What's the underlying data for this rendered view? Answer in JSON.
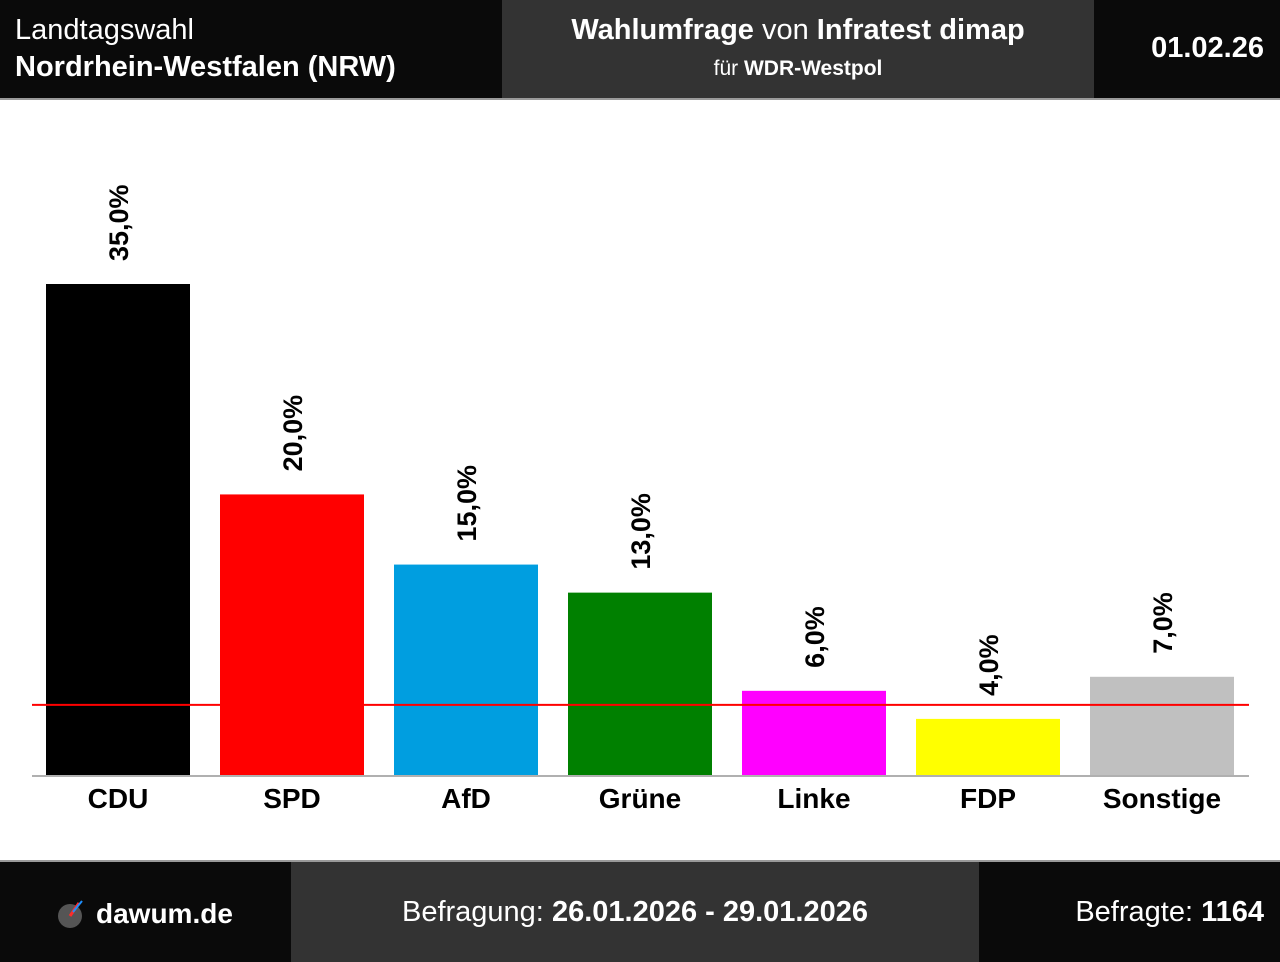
{
  "header": {
    "election_line1": "Landtagswahl",
    "election_line2": "Nordrhein-Westfalen (NRW)",
    "title_part1": "Wahlumfrage",
    "title_part2": " von ",
    "title_part3": "Infratest dimap",
    "client_prefix": "für ",
    "client_name": "WDR-Westpol",
    "date": "01.02.26"
  },
  "footer": {
    "brand": "dawum.de",
    "survey_prefix": "Befragung: ",
    "survey_period": "26.01.2026 - 29.01.2026",
    "respondents_prefix": "Befragte: ",
    "respondents_count": "1164"
  },
  "chart_data": {
    "type": "bar",
    "categories": [
      "CDU",
      "SPD",
      "AfD",
      "Grüne",
      "Linke",
      "FDP",
      "Sonstige"
    ],
    "values": [
      35.0,
      20.0,
      15.0,
      13.0,
      6.0,
      4.0,
      7.0
    ],
    "value_labels": [
      "35,0%",
      "20,0%",
      "15,0%",
      "13,0%",
      "6,0%",
      "4,0%",
      "7,0%"
    ],
    "colors": [
      "#000000",
      "#ff0000",
      "#009ee0",
      "#008000",
      "#ff00ff",
      "#ffff00",
      "#c0c0c0"
    ],
    "threshold": 5.0,
    "threshold_color": "#ff0000",
    "ylim": [
      0,
      35
    ],
    "title": "",
    "xlabel": "",
    "ylabel": ""
  }
}
